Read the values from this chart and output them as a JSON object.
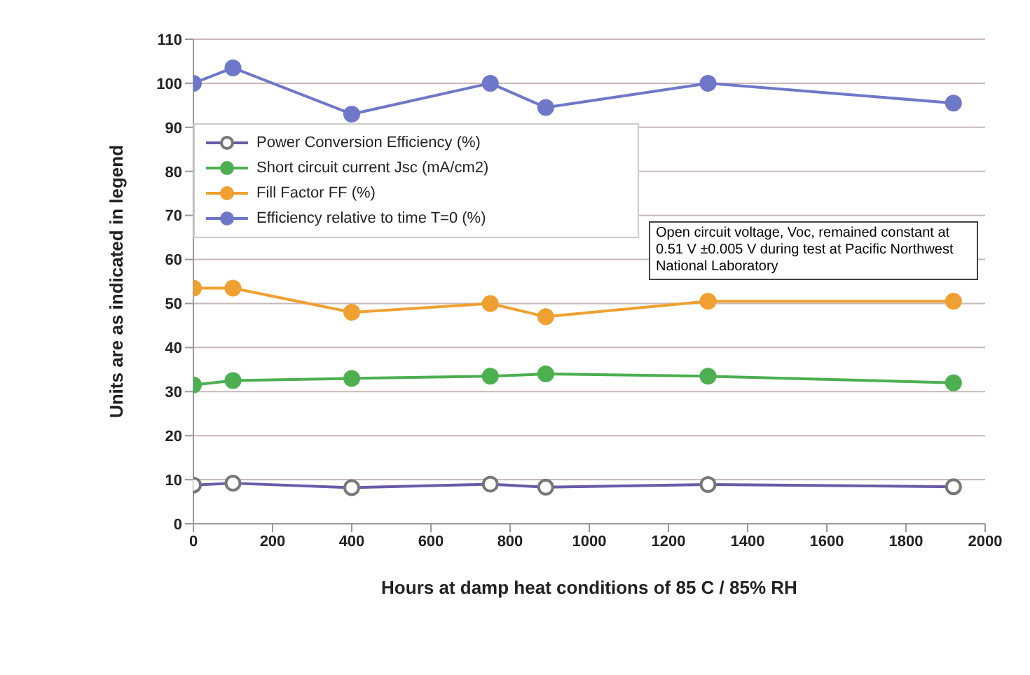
{
  "chart_data": {
    "type": "line",
    "xlabel": "Hours at damp heat conditions of 85 C / 85% RH",
    "ylabel": "Units are as indicated in legend",
    "x": [
      0,
      100,
      400,
      750,
      890,
      1300,
      1920
    ],
    "series": [
      {
        "name": "Power Conversion Efficiency (%)",
        "color": "#6a5aa8",
        "values": [
          8.8,
          9.2,
          8.2,
          9,
          8.3,
          8.9,
          8.4
        ]
      },
      {
        "name": "Short circuit current Jsc (mA/cm2)",
        "color": "#4caf50",
        "values": [
          31.5,
          32.5,
          33,
          33.5,
          34,
          33.5,
          32
        ]
      },
      {
        "name": "Fill Factor FF (%)",
        "color": "#f0a030",
        "values": [
          53.5,
          53.5,
          48,
          50,
          47,
          50.5,
          50.5
        ]
      },
      {
        "name": "Efficiency relative to time T=0 (%)",
        "color": "#6f78c8",
        "values": [
          100,
          103.5,
          93,
          100,
          94.5,
          100,
          95.5
        ]
      }
    ],
    "xlim": [
      0,
      2000
    ],
    "xticks": [
      0,
      200,
      400,
      600,
      800,
      1000,
      1200,
      1400,
      1600,
      1800,
      2000
    ],
    "ylim": [
      0,
      110
    ],
    "yticks": [
      0,
      10,
      20,
      30,
      40,
      50,
      60,
      70,
      80,
      90,
      100,
      110
    ],
    "grid": "y",
    "legend": "top left",
    "marker": "circle",
    "line_style": "solid",
    "annotations": [
      "Open circuit voltage, Voc, remained constant at 0.51 V ±0.005 V during test at Pacific Northwest National Laboratory"
    ]
  }
}
